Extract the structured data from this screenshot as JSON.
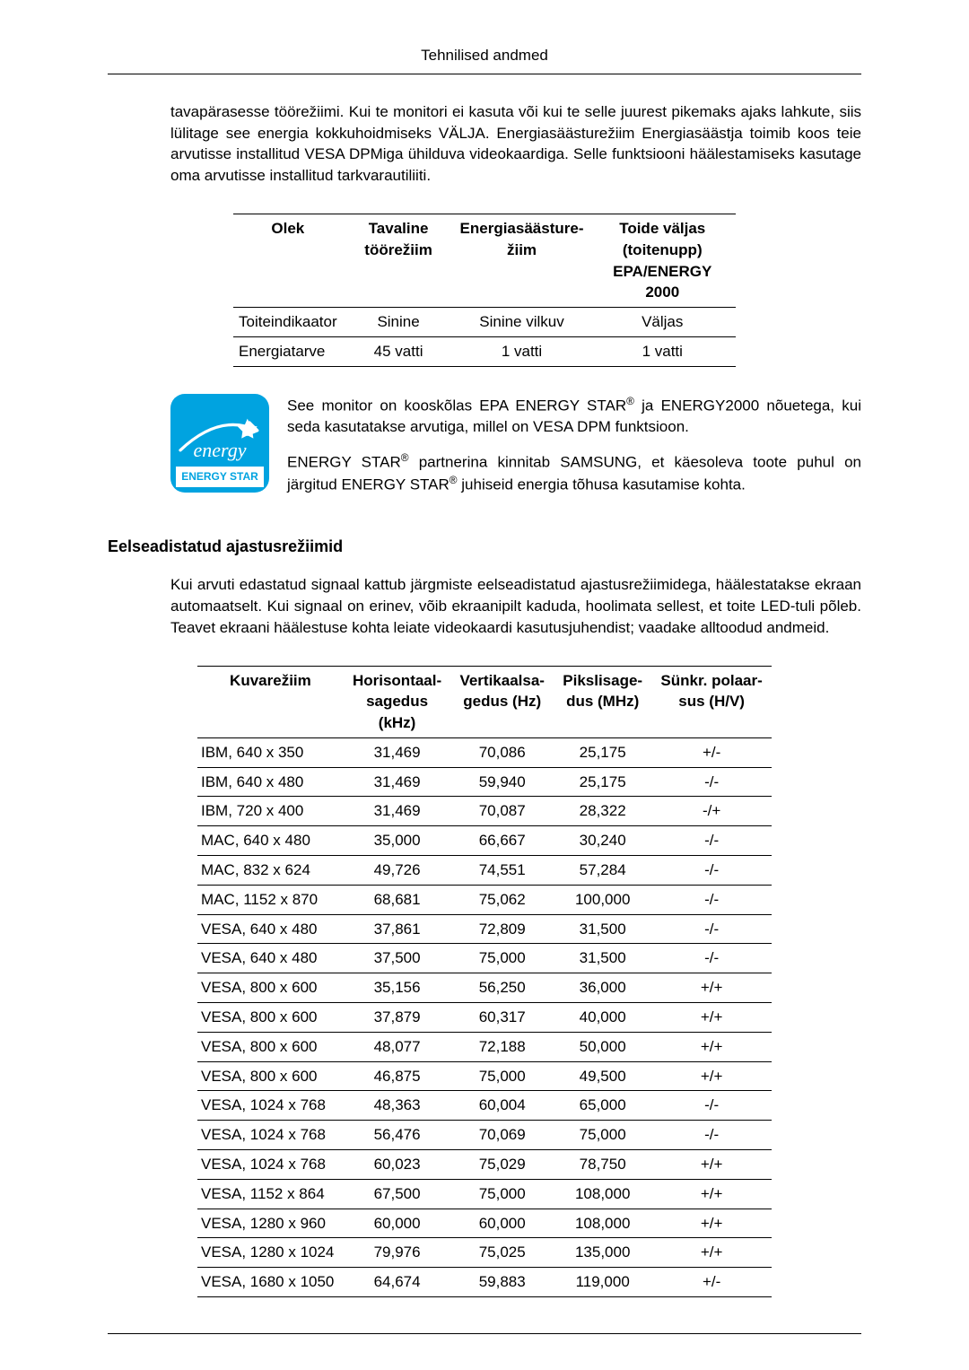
{
  "header": {
    "title": "Tehnilised andmed"
  },
  "intro_para": "tavapärasesse töörežiimi. Kui te monitori ei kasuta või kui te selle juurest pikemaks ajaks lahkute, siis lülitage see energia kokkuhoidmiseks VÄLJA. Energiasäästurežiim Energiasäästja toimib koos teie arvutisse installitud VESA DPMiga ühilduva videokaardiga. Selle funktsiooni häälestamiseks kasutage oma arvutisse installitud tarkvarautiliiti.",
  "power_table": {
    "columns": [
      "Olek",
      "Tavaline töörežiim",
      "Energiasäästure-\nžiim",
      "Toide väljas (toitenupp)\nEPA/ENERGY 2000"
    ],
    "rows": [
      [
        "Toiteindikaator",
        "Sinine",
        "Sinine vilkuv",
        "Väljas"
      ],
      [
        "Energiatarve",
        "45 vatti",
        "1 vatti",
        "1 vatti"
      ]
    ]
  },
  "energy_logo": {
    "script": "energy",
    "label": "ENERGY STAR"
  },
  "energy_copy": {
    "p1_pre": "See monitor on kooskõlas EPA ENERGY STAR",
    "p1_post": " ja ENERGY2000 nõuetega, kui seda kasutatakse arvutiga, millel on VESA DPM funktsioon.",
    "p2_pre": "ENERGY STAR",
    "p2_mid": " partnerina kinnitab SAMSUNG, et käesoleva toote puhul on järgitud ENERGY STAR",
    "p2_post": " juhiseid energia tõhusa kasutamise kohta.",
    "reg": "®"
  },
  "section2": {
    "heading": "Eelseadistatud ajastusrežiimid",
    "para": "Kui arvuti edastatud signaal kattub järgmiste eelseadistatud ajastusrežiimidega, häälestatakse ekraan automaatselt. Kui signaal on erinev, võib ekraanipilt kaduda, hoolimata sellest, et toite LED-tuli põleb. Teavet ekraani häälestuse kohta leiate videokaardi kasutusjuhendist; vaadake alltoodud andmeid."
  },
  "timing_table": {
    "columns": [
      "Kuvarežiim",
      "Horisontaal-\nsagedus\n(kHz)",
      "Vertikaalsa-\ngedus (Hz)",
      "Pikslisage-\ndus (MHz)",
      "Sünkr. polaar-\nsus (H/V)"
    ],
    "rows": [
      [
        "IBM, 640 x 350",
        "31,469",
        "70,086",
        "25,175",
        "+/-"
      ],
      [
        "IBM, 640 x 480",
        "31,469",
        "59,940",
        "25,175",
        "-/-"
      ],
      [
        "IBM, 720 x 400",
        "31,469",
        "70,087",
        "28,322",
        "-/+"
      ],
      [
        "MAC, 640 x 480",
        "35,000",
        "66,667",
        "30,240",
        "-/-"
      ],
      [
        "MAC, 832 x 624",
        "49,726",
        "74,551",
        "57,284",
        "-/-"
      ],
      [
        "MAC, 1152 x 870",
        "68,681",
        "75,062",
        "100,000",
        "-/-"
      ],
      [
        "VESA, 640 x 480",
        "37,861",
        "72,809",
        "31,500",
        "-/-"
      ],
      [
        "VESA, 640 x 480",
        "37,500",
        "75,000",
        "31,500",
        "-/-"
      ],
      [
        "VESA, 800 x 600",
        "35,156",
        "56,250",
        "36,000",
        "+/+"
      ],
      [
        "VESA, 800 x 600",
        "37,879",
        "60,317",
        "40,000",
        "+/+"
      ],
      [
        "VESA, 800 x 600",
        "48,077",
        "72,188",
        "50,000",
        "+/+"
      ],
      [
        "VESA, 800 x 600",
        "46,875",
        "75,000",
        "49,500",
        "+/+"
      ],
      [
        "VESA, 1024 x 768",
        "48,363",
        "60,004",
        "65,000",
        "-/-"
      ],
      [
        "VESA, 1024 x 768",
        "56,476",
        "70,069",
        "75,000",
        "-/-"
      ],
      [
        "VESA, 1024 x 768",
        "60,023",
        "75,029",
        "78,750",
        "+/+"
      ],
      [
        "VESA, 1152 x 864",
        "67,500",
        "75,000",
        "108,000",
        "+/+"
      ],
      [
        "VESA, 1280 x 960",
        "60,000",
        "60,000",
        "108,000",
        "+/+"
      ],
      [
        "VESA, 1280 x 1024",
        "79,976",
        "75,025",
        "135,000",
        "+/+"
      ],
      [
        "VESA, 1680 x 1050",
        "64,674",
        "59,883",
        "119,000",
        "+/-"
      ]
    ]
  }
}
